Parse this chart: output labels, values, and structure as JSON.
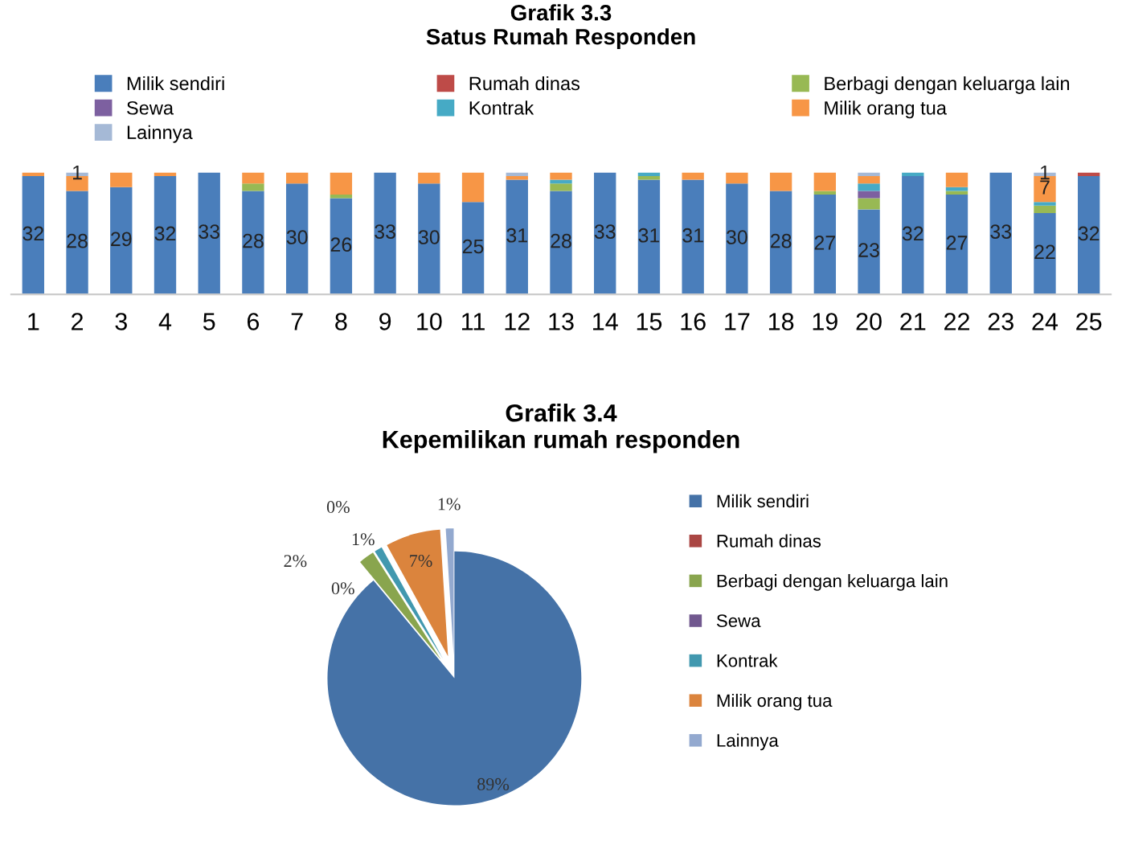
{
  "chart_data": [
    {
      "type": "bar",
      "title": "Grafik 3.3\nSatus Rumah Responden",
      "stacked": true,
      "legend": "top",
      "tick_labels": "x",
      "grid": false,
      "categories": [
        "1",
        "2",
        "3",
        "4",
        "5",
        "6",
        "7",
        "8",
        "9",
        "10",
        "11",
        "12",
        "13",
        "14",
        "15",
        "16",
        "17",
        "18",
        "19",
        "20",
        "21",
        "22",
        "23",
        "24",
        "25"
      ],
      "series": [
        {
          "name": "Milik sendiri",
          "color": "#4a7ebb",
          "values": [
            32,
            28,
            29,
            32,
            33,
            28,
            30,
            26,
            33,
            30,
            25,
            31,
            28,
            33,
            31,
            31,
            30,
            28,
            27,
            23,
            32,
            27,
            33,
            22,
            32
          ],
          "value_labels": [
            "32",
            "28",
            "29",
            "32",
            "33",
            "28",
            "30",
            "26",
            "33",
            "30",
            "25",
            "31",
            "28",
            "33",
            "31",
            "31",
            "30",
            "28",
            "27",
            "23",
            "32",
            "27",
            "33",
            "22",
            "32"
          ]
        },
        {
          "name": "Rumah dinas",
          "color": "#be4b48",
          "values": [
            0,
            0,
            0,
            0,
            0,
            0,
            0,
            0,
            0,
            0,
            0,
            0,
            0,
            0,
            0,
            0,
            0,
            0,
            0,
            0,
            0,
            0,
            0,
            0,
            1
          ]
        },
        {
          "name": "Berbagi dengan keluarga lain",
          "color": "#98b954",
          "values": [
            0,
            0,
            0,
            0,
            0,
            2,
            0,
            1,
            0,
            0,
            0,
            0,
            2,
            0,
            1,
            0,
            0,
            0,
            1,
            3,
            0,
            1,
            0,
            2,
            0
          ]
        },
        {
          "name": "Sewa",
          "color": "#7d60a0",
          "values": [
            0,
            0,
            0,
            0,
            0,
            0,
            0,
            0,
            0,
            0,
            0,
            0,
            0,
            0,
            0,
            0,
            0,
            0,
            0,
            2,
            0,
            0,
            0,
            0,
            0
          ]
        },
        {
          "name": "Kontrak",
          "color": "#46aac5",
          "values": [
            0,
            0,
            0,
            0,
            0,
            0,
            0,
            0,
            0,
            0,
            0,
            0,
            1,
            0,
            1,
            0,
            0,
            0,
            0,
            2,
            1,
            1,
            0,
            1,
            0
          ]
        },
        {
          "name": "Milik orang tua",
          "color": "#f79646",
          "values": [
            1,
            4,
            4,
            1,
            0,
            3,
            3,
            6,
            0,
            3,
            8,
            1,
            2,
            0,
            0,
            2,
            3,
            5,
            5,
            2,
            0,
            4,
            0,
            7,
            0
          ],
          "value_labels": [
            null,
            null,
            null,
            null,
            null,
            null,
            null,
            null,
            null,
            null,
            null,
            null,
            null,
            null,
            null,
            null,
            null,
            null,
            null,
            null,
            null,
            null,
            null,
            "7",
            null
          ]
        },
        {
          "name": "Lainnya",
          "color": "#a5b9d6",
          "values": [
            0,
            1,
            0,
            0,
            0,
            0,
            0,
            0,
            0,
            0,
            0,
            1,
            0,
            0,
            0,
            0,
            0,
            0,
            0,
            1,
            0,
            0,
            0,
            1,
            0
          ],
          "value_labels": [
            null,
            "1",
            null,
            null,
            null,
            null,
            null,
            null,
            null,
            null,
            null,
            null,
            null,
            null,
            null,
            null,
            null,
            null,
            null,
            null,
            null,
            null,
            null,
            "1",
            null
          ]
        }
      ]
    },
    {
      "type": "pie",
      "title": "Grafik 3.4\nKepemilikan rumah responden",
      "legend": "right",
      "categories": [
        "Milik sendiri",
        "Rumah dinas",
        "Berbagi dengan keluarga lain",
        "Sewa",
        "Kontrak",
        "Milik orang tua",
        "Lainnya"
      ],
      "values": [
        89,
        0,
        2,
        0,
        1,
        7,
        1
      ],
      "value_labels": [
        "89%",
        "0%",
        "2%",
        "0%",
        "1%",
        "7%",
        "1%"
      ],
      "colors": [
        "#4572a7",
        "#aa4643",
        "#89a54e",
        "#71588f",
        "#4198af",
        "#db843d",
        "#93a9cf"
      ]
    }
  ]
}
